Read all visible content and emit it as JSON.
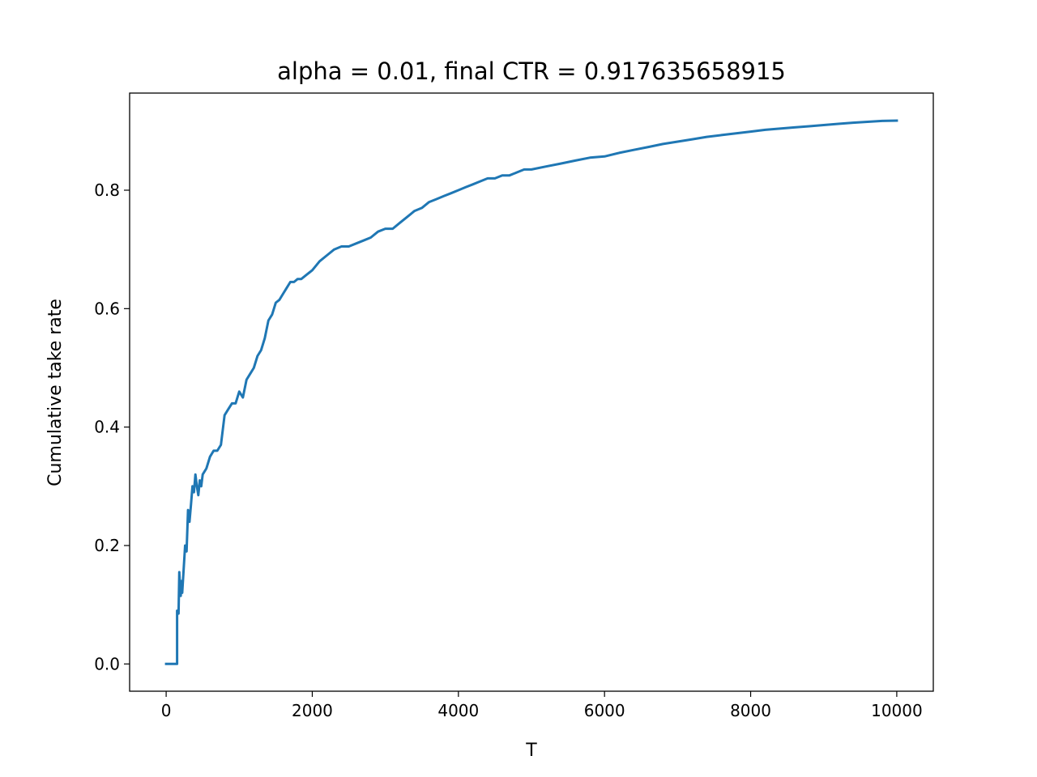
{
  "chart_data": {
    "type": "line",
    "title": "alpha = 0.01, final CTR = 0.917635658915",
    "xlabel": "T",
    "ylabel": "Cumulative take rate",
    "xlim": [
      -500,
      10500
    ],
    "ylim": [
      -0.046,
      0.964
    ],
    "xticks": [
      0,
      2000,
      4000,
      6000,
      8000,
      10000
    ],
    "xtick_labels": [
      "0",
      "2000",
      "4000",
      "6000",
      "8000",
      "10000"
    ],
    "yticks": [
      0.0,
      0.2,
      0.4,
      0.6,
      0.8
    ],
    "ytick_labels": [
      "0.0",
      "0.2",
      "0.4",
      "0.6",
      "0.8"
    ],
    "grid": false,
    "legend": "none",
    "series": [
      {
        "color": "#1f77b4",
        "x": [
          0,
          150,
          150,
          170,
          180,
          190,
          200,
          210,
          220,
          240,
          260,
          280,
          300,
          320,
          340,
          360,
          380,
          400,
          420,
          440,
          460,
          480,
          500,
          550,
          600,
          650,
          700,
          750,
          800,
          850,
          900,
          950,
          1000,
          1050,
          1100,
          1150,
          1200,
          1250,
          1300,
          1350,
          1400,
          1450,
          1500,
          1550,
          1600,
          1650,
          1700,
          1750,
          1800,
          1850,
          1900,
          2000,
          2100,
          2200,
          2300,
          2400,
          2500,
          2600,
          2700,
          2800,
          2900,
          3000,
          3100,
          3200,
          3300,
          3400,
          3500,
          3600,
          3700,
          3800,
          3900,
          4000,
          4100,
          4200,
          4300,
          4400,
          4500,
          4600,
          4700,
          4800,
          4900,
          5000,
          5200,
          5400,
          5600,
          5800,
          6000,
          6200,
          6400,
          6600,
          6800,
          7000,
          7200,
          7400,
          7600,
          7800,
          8000,
          8200,
          8400,
          8600,
          8800,
          9000,
          9200,
          9400,
          9600,
          9800,
          10000
        ],
        "y": [
          0.0,
          0.0,
          0.09,
          0.085,
          0.155,
          0.13,
          0.115,
          0.14,
          0.12,
          0.16,
          0.2,
          0.19,
          0.26,
          0.24,
          0.27,
          0.3,
          0.29,
          0.32,
          0.3,
          0.285,
          0.31,
          0.3,
          0.32,
          0.33,
          0.35,
          0.36,
          0.36,
          0.37,
          0.42,
          0.43,
          0.44,
          0.44,
          0.46,
          0.45,
          0.48,
          0.49,
          0.5,
          0.52,
          0.53,
          0.55,
          0.58,
          0.59,
          0.61,
          0.615,
          0.625,
          0.635,
          0.645,
          0.645,
          0.65,
          0.65,
          0.655,
          0.665,
          0.68,
          0.69,
          0.7,
          0.705,
          0.705,
          0.71,
          0.715,
          0.72,
          0.73,
          0.735,
          0.735,
          0.745,
          0.755,
          0.765,
          0.77,
          0.78,
          0.785,
          0.79,
          0.795,
          0.8,
          0.805,
          0.81,
          0.815,
          0.82,
          0.82,
          0.825,
          0.825,
          0.83,
          0.835,
          0.835,
          0.84,
          0.845,
          0.85,
          0.855,
          0.857,
          0.863,
          0.868,
          0.873,
          0.878,
          0.882,
          0.886,
          0.89,
          0.893,
          0.896,
          0.899,
          0.902,
          0.904,
          0.906,
          0.908,
          0.91,
          0.912,
          0.914,
          0.9155,
          0.917,
          0.9176
        ]
      }
    ]
  }
}
